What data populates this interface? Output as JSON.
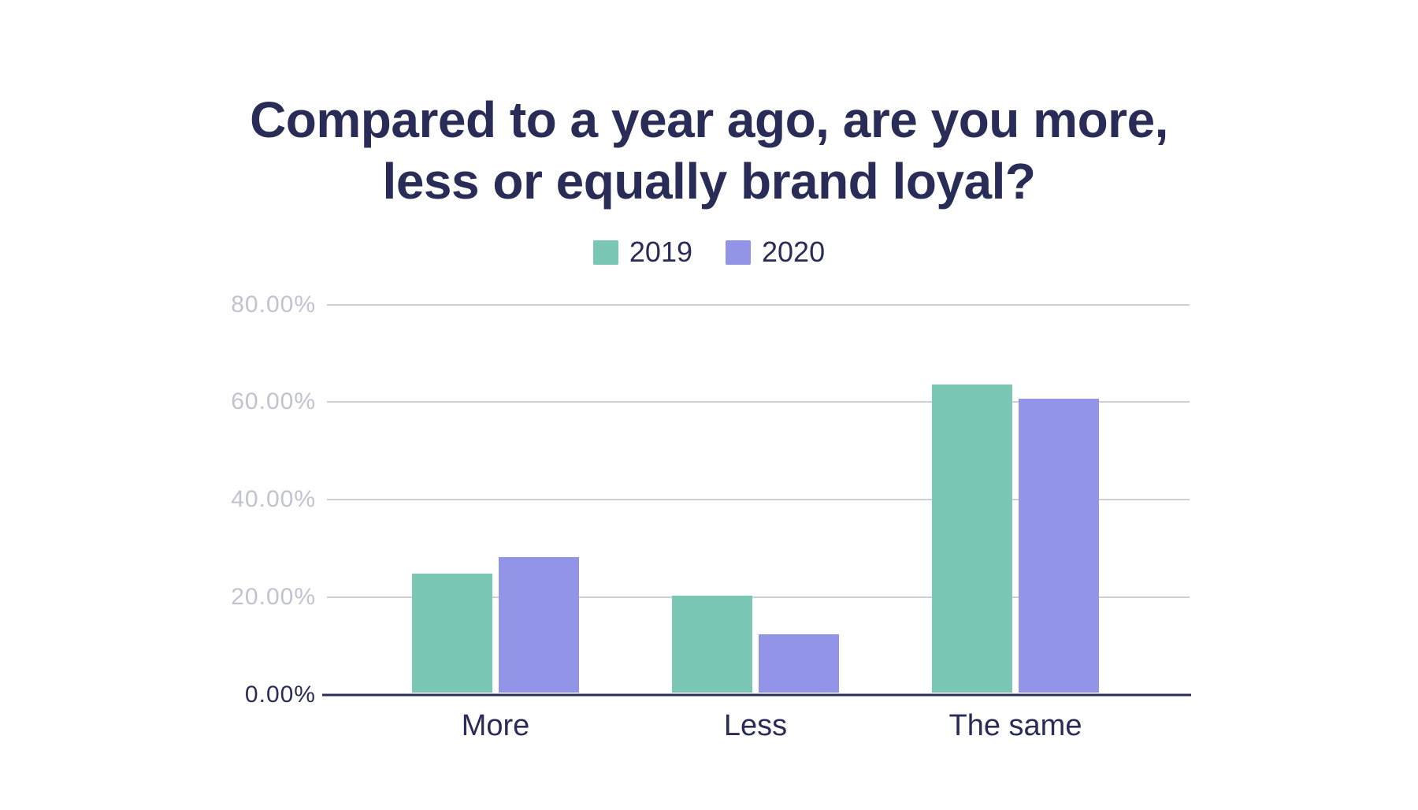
{
  "title": {
    "line1": "Compared to a year ago, are you more,",
    "line2": "less or equally brand loyal?"
  },
  "legend": {
    "items": [
      {
        "label": "2019",
        "color": "#79C7B4"
      },
      {
        "label": "2020",
        "color": "#9294E8"
      }
    ]
  },
  "chart_data": {
    "type": "bar",
    "title": "Compared to a year ago, are you more, less or equally brand loyal?",
    "categories": [
      "More",
      "Less",
      "The same"
    ],
    "series": [
      {
        "name": "2019",
        "color": "#79C7B4",
        "values": [
          24.5,
          20.0,
          63.5
        ]
      },
      {
        "name": "2020",
        "color": "#9294E8",
        "values": [
          28.0,
          12.0,
          60.5
        ]
      }
    ],
    "xlabel": "",
    "ylabel": "",
    "y_ticks": [
      {
        "label": "0.00%",
        "value": 0
      },
      {
        "label": "20.00%",
        "value": 20
      },
      {
        "label": "40.00%",
        "value": 40
      },
      {
        "label": "60.00%",
        "value": 60
      },
      {
        "label": "80.00%",
        "value": 80
      }
    ],
    "ylim": [
      0,
      88
    ],
    "grid": "horizontal",
    "legend_position": "top"
  },
  "colors": {
    "text_navy": "#2A2C58",
    "axis_navy": "#2A2C58",
    "tick_gray": "#C2C2D1",
    "grid_gray": "#CFCFDC",
    "background": "#FFFFFF"
  }
}
